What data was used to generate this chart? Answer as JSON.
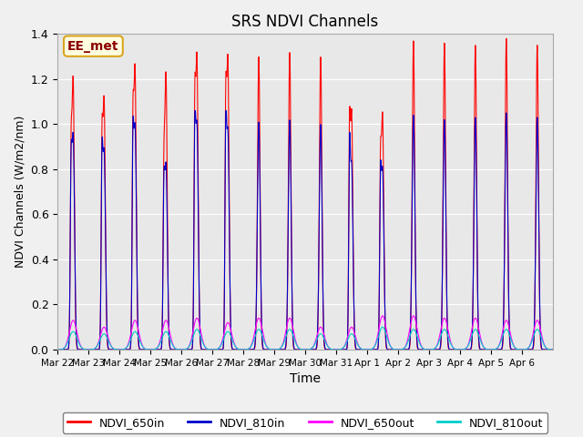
{
  "title": "SRS NDVI Channels",
  "xlabel": "Time",
  "ylabel": "NDVI Channels (W/m2/nm)",
  "ylim": [
    0,
    1.4
  ],
  "yticks": [
    0.0,
    0.2,
    0.4,
    0.6,
    0.8,
    1.0,
    1.2,
    1.4
  ],
  "annotation_text": "EE_met",
  "colors": {
    "NDVI_650in": "#ff0000",
    "NDVI_810in": "#0000cc",
    "NDVI_650out": "#ff00ff",
    "NDVI_810out": "#00cccc"
  },
  "legend_labels": [
    "NDVI_650in",
    "NDVI_810in",
    "NDVI_650out",
    "NDVI_810out"
  ],
  "n_days": 16,
  "background_color": "#e8e8e8",
  "grid_color": "#ffffff",
  "tick_labels": [
    "Mar 22",
    "Mar 23",
    "Mar 24",
    "Mar 25",
    "Mar 26",
    "Mar 27",
    "Mar 28",
    "Mar 29",
    "Mar 30",
    "Mar 31",
    "Apr 1",
    "Apr 2",
    "Apr 3",
    "Apr 4",
    "Apr 5",
    "Apr 6"
  ],
  "peak_heights_red": [
    1.2,
    1.11,
    1.25,
    1.22,
    1.3,
    1.29,
    1.3,
    1.32,
    1.3,
    1.05,
    1.04,
    1.37,
    1.36,
    1.35,
    1.38,
    1.35
  ],
  "peak_heights_blue": [
    0.95,
    0.88,
    0.99,
    0.82,
    1.0,
    0.97,
    1.01,
    1.02,
    1.0,
    0.82,
    0.8,
    1.04,
    1.02,
    1.03,
    1.05,
    1.03
  ],
  "peak_heights_mag": [
    0.13,
    0.1,
    0.13,
    0.13,
    0.14,
    0.12,
    0.14,
    0.14,
    0.1,
    0.1,
    0.15,
    0.15,
    0.14,
    0.14,
    0.13,
    0.13
  ],
  "peak_heights_cyan": [
    0.08,
    0.07,
    0.08,
    0.08,
    0.09,
    0.08,
    0.09,
    0.09,
    0.07,
    0.07,
    0.1,
    0.09,
    0.09,
    0.09,
    0.09,
    0.09
  ],
  "shoulder_heights": [
    0.68,
    0.74,
    0.8,
    0.6,
    0.87,
    0.88,
    0.0,
    0.0,
    0.0,
    0.8,
    0.65,
    0.0,
    0.0,
    0.0,
    0.0,
    0.0
  ]
}
